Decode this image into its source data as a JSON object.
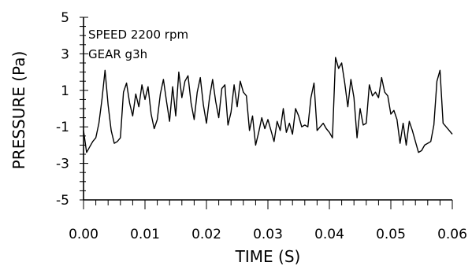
{
  "chart_data": {
    "type": "line",
    "xlabel": "TIME (S)",
    "ylabel": "PRESSURE (Pa)",
    "xlim": [
      0,
      0.06
    ],
    "ylim": [
      -5,
      5
    ],
    "x_ticks": [
      0,
      0.01,
      0.02,
      0.03,
      0.04,
      0.05,
      0.06
    ],
    "x_tick_labels": [
      "0.00",
      "0.01",
      "0.02",
      "0.03",
      "0.04",
      "0.05",
      "0.06"
    ],
    "y_ticks": [
      5,
      3,
      1,
      -1,
      -3,
      -5
    ],
    "y_tick_labels": [
      "5",
      "3",
      "1",
      "-1",
      "-3",
      "-5"
    ],
    "x_minor_step": 0.002,
    "y_minor_step": 0.5,
    "grid": false,
    "annotations": [
      "SPEED 2200 rpm",
      "GEAR g3h"
    ],
    "color": "#000000",
    "series": [
      {
        "x": [
          0.0,
          0.0005,
          0.001,
          0.0015,
          0.002,
          0.0025,
          0.003,
          0.0035,
          0.004,
          0.0045,
          0.005,
          0.0055,
          0.006,
          0.0065,
          0.007,
          0.0075,
          0.008,
          0.0085,
          0.009,
          0.0095,
          0.01,
          0.0105,
          0.011,
          0.0115,
          0.012,
          0.0125,
          0.013,
          0.0135,
          0.014,
          0.0145,
          0.015,
          0.0155,
          0.016,
          0.0165,
          0.017,
          0.0175,
          0.018,
          0.0185,
          0.019,
          0.0195,
          0.02,
          0.0205,
          0.021,
          0.0215,
          0.022,
          0.0225,
          0.023,
          0.0235,
          0.024,
          0.0245,
          0.025,
          0.0255,
          0.026,
          0.0265,
          0.027,
          0.0275,
          0.028,
          0.0285,
          0.029,
          0.0295,
          0.03,
          0.0305,
          0.031,
          0.0315,
          0.032,
          0.0325,
          0.033,
          0.0335,
          0.034,
          0.0345,
          0.035,
          0.0355,
          0.036,
          0.0365,
          0.037,
          0.0375,
          0.038,
          0.0385,
          0.039,
          0.0395,
          0.04,
          0.0405,
          0.041,
          0.0415,
          0.042,
          0.0425,
          0.043,
          0.0435,
          0.044,
          0.0445,
          0.045,
          0.0455,
          0.046,
          0.0465,
          0.047,
          0.0475,
          0.048,
          0.0485,
          0.049,
          0.0495,
          0.05,
          0.0505,
          0.051,
          0.0515,
          0.052,
          0.0525,
          0.053,
          0.0535,
          0.054,
          0.0545,
          0.055,
          0.0555,
          0.056,
          0.0565,
          0.057,
          0.0575,
          0.058,
          0.0585,
          0.059,
          0.0595,
          0.06
        ],
        "y": [
          -1.2,
          -2.4,
          -2.1,
          -1.8,
          -1.6,
          -0.8,
          0.5,
          2.1,
          0.2,
          -1.2,
          -1.9,
          -1.8,
          -1.6,
          0.9,
          1.4,
          0.3,
          -0.4,
          0.8,
          0.1,
          1.3,
          0.5,
          1.2,
          -0.3,
          -1.1,
          -0.6,
          0.8,
          1.6,
          0.4,
          -0.7,
          1.2,
          -0.4,
          2.0,
          0.6,
          1.5,
          1.8,
          0.3,
          -0.6,
          0.9,
          1.7,
          0.2,
          -0.8,
          0.6,
          1.6,
          0.4,
          -0.5,
          1.1,
          1.3,
          -0.9,
          -0.2,
          1.3,
          0.1,
          1.5,
          0.9,
          0.7,
          -1.2,
          -0.4,
          -2.0,
          -1.3,
          -0.5,
          -1.1,
          -0.6,
          -1.2,
          -1.8,
          -0.7,
          -1.2,
          0.0,
          -1.3,
          -0.8,
          -1.4,
          0.0,
          -0.4,
          -1.0,
          -0.9,
          -1.0,
          0.6,
          1.4,
          -1.2,
          -1.0,
          -0.8,
          -1.1,
          -1.3,
          -1.6,
          2.8,
          2.2,
          2.5,
          1.4,
          0.1,
          1.6,
          0.6,
          -1.6,
          0.0,
          -0.9,
          -0.8,
          1.3,
          0.7,
          0.9,
          0.6,
          1.7,
          0.9,
          0.7,
          -0.3,
          -0.1,
          -0.6,
          -1.9,
          -0.8,
          -2.0,
          -0.7,
          -1.2,
          -1.8,
          -2.4,
          -2.3,
          -2.0,
          -1.9,
          -1.8,
          -0.9,
          1.5,
          2.1,
          -0.8,
          -1.0,
          -1.2,
          -1.4
        ]
      }
    ]
  }
}
